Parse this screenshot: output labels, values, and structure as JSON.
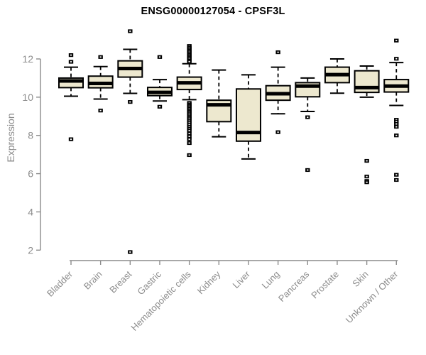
{
  "title": "ENSG00000127054 - CPSF3L",
  "chart_data": {
    "type": "boxplot",
    "title": "ENSG00000127054 - CPSF3L",
    "xlabel": "",
    "ylabel": "Expression",
    "ylim": [
      2,
      12
    ],
    "yticks": [
      2,
      4,
      6,
      8,
      10,
      12
    ],
    "grid": false,
    "legend": false,
    "categories": [
      "Bladder",
      "Brain",
      "Breast",
      "Gastric",
      "Hematopoietic cells",
      "Kidney",
      "Liver",
      "Lung",
      "Pancreas",
      "Prostate",
      "Skin",
      "Unknown / Other"
    ],
    "series": [
      {
        "name": "Bladder",
        "whisker_low": 10.05,
        "q1": 10.5,
        "median": 10.85,
        "q3": 11.0,
        "whisker_high": 11.57,
        "outliers": [
          12.2,
          11.85,
          7.8
        ]
      },
      {
        "name": "Brain",
        "whisker_low": 9.9,
        "q1": 10.49,
        "median": 10.72,
        "q3": 11.1,
        "whisker_high": 11.6,
        "outliers": [
          12.1,
          9.3
        ]
      },
      {
        "name": "Breast",
        "whisker_low": 10.2,
        "q1": 11.05,
        "median": 11.5,
        "q3": 11.9,
        "whisker_high": 12.5,
        "outliers": [
          13.45,
          9.75,
          1.9
        ]
      },
      {
        "name": "Gastric",
        "whisker_low": 9.8,
        "q1": 10.08,
        "median": 10.25,
        "q3": 10.51,
        "whisker_high": 10.92,
        "outliers": [
          12.1,
          9.5
        ]
      },
      {
        "name": "Hematopoietic cells",
        "whisker_low": 9.87,
        "q1": 10.4,
        "median": 10.75,
        "q3": 11.05,
        "whisker_high": 11.75,
        "outliers": [
          12.68,
          12.6,
          12.52,
          12.45,
          12.38,
          12.3,
          12.22,
          12.15,
          12.08,
          12.0,
          11.92,
          11.86,
          9.7,
          9.62,
          9.55,
          9.48,
          9.4,
          9.32,
          9.25,
          9.17,
          9.1,
          9.0,
          8.92,
          8.85,
          8.75,
          8.65,
          8.55,
          8.45,
          8.35,
          8.25,
          8.1,
          7.95,
          7.8,
          7.6,
          6.97
        ]
      },
      {
        "name": "Kidney",
        "whisker_low": 7.93,
        "q1": 8.72,
        "median": 9.6,
        "q3": 9.84,
        "whisker_high": 11.42,
        "outliers": []
      },
      {
        "name": "Liver",
        "whisker_low": 6.77,
        "q1": 7.7,
        "median": 8.15,
        "q3": 10.43,
        "whisker_high": 11.17,
        "outliers": []
      },
      {
        "name": "Lung",
        "whisker_low": 9.13,
        "q1": 9.84,
        "median": 10.18,
        "q3": 10.6,
        "whisker_high": 11.57,
        "outliers": [
          12.35,
          8.17
        ]
      },
      {
        "name": "Pancreas",
        "whisker_low": 9.25,
        "q1": 10.02,
        "median": 10.58,
        "q3": 10.76,
        "whisker_high": 11.0,
        "outliers": [
          8.95,
          6.19
        ]
      },
      {
        "name": "Prostate",
        "whisker_low": 10.21,
        "q1": 10.76,
        "median": 11.18,
        "q3": 11.57,
        "whisker_high": 12.0,
        "outliers": []
      },
      {
        "name": "Skin",
        "whisker_low": 10.0,
        "q1": 10.25,
        "median": 10.5,
        "q3": 11.38,
        "whisker_high": 11.63,
        "outliers": [
          6.67,
          5.85,
          5.62,
          5.55
        ]
      },
      {
        "name": "Unknown / Other",
        "whisker_low": 9.57,
        "q1": 10.27,
        "median": 10.58,
        "q3": 10.92,
        "whisker_high": 11.81,
        "outliers": [
          12.96,
          12.01,
          8.82,
          8.72,
          8.6,
          8.45,
          8.0,
          5.94,
          5.67
        ]
      }
    ],
    "colors": {
      "box_fill": "#ede8cf",
      "box_border": "#000000",
      "median": "#000000",
      "whisker": "#000000",
      "outlier": "#000000",
      "axis": "#8c8c8c",
      "tick_label": "#8c8c8c",
      "title": "#000000",
      "background": "#ffffff"
    }
  }
}
